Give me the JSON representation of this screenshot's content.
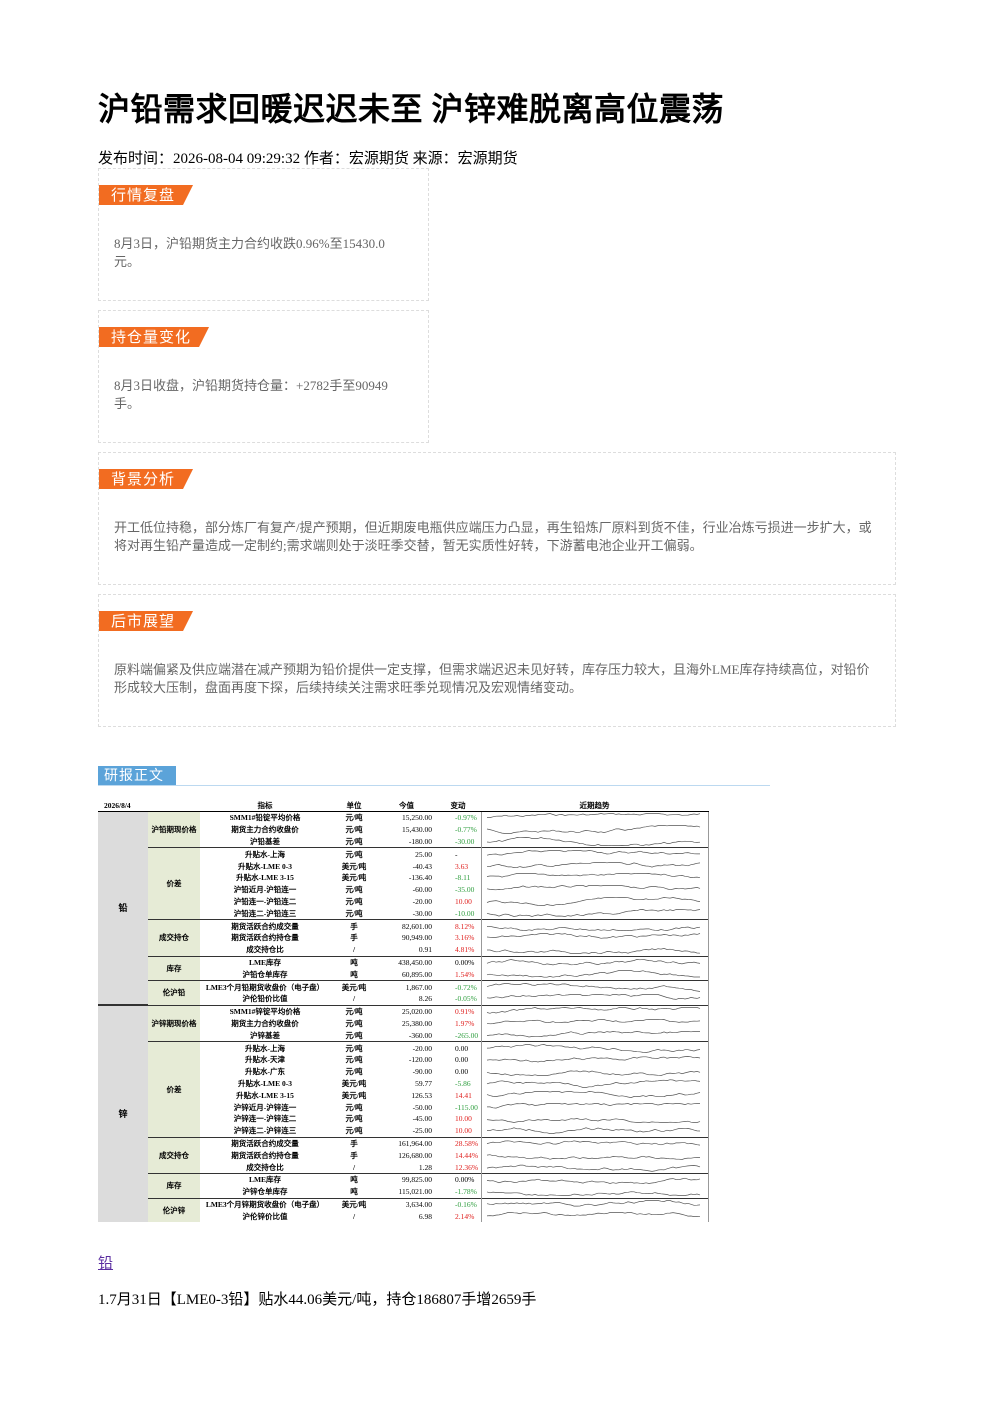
{
  "header": {
    "title": "沪铅需求回暖迟迟未至 沪锌难脱离高位震荡",
    "meta": "发布时间：2026-08-04 09:29:32 作者：宏源期货 来源：宏源期货"
  },
  "sections": [
    {
      "label": "行情复盘",
      "text": "8月3日，沪铅期货主力合约收跌0.96%至15430.0元。"
    },
    {
      "label": "持仓量变化",
      "text": "8月3日收盘，沪铅期货持仓量：+2782手至90949手。"
    },
    {
      "label": "背景分析",
      "text": "开工低位持稳，部分炼厂有复产/提产预期，但近期废电瓶供应端压力凸显，再生铅炼厂原料到货不佳，行业冶炼亏损进一步扩大，或将对再生铅产量造成一定制约;需求端则处于淡旺季交替，暂无实质性好转，下游蓄电池企业开工偏弱。"
    },
    {
      "label": "后市展望",
      "text": "原料端偏紧及供应端潜在减产预期为铅价提供一定支撑，但需求端迟迟未见好转，库存压力较大，且海外LME库存持续高位，对铅价形成较大压制，盘面再度下探，后续持续关注需求旺季兑现情况及宏观情绪变动。"
    }
  ],
  "report": {
    "label": "研报正文",
    "table": {
      "date": "2026/8/4",
      "columns": [
        "指标",
        "单位",
        "今值",
        "变动",
        "近期趋势"
      ],
      "groups": [
        {
          "metal": "铅",
          "subgroups": [
            {
              "name": "沪铅期现价格",
              "rows": [
                [
                  "SMM1#铅锭平均价格",
                  "元/吨",
                  "15,250.00",
                  "-0.97%"
                ],
                [
                  "期货主力合约收盘价",
                  "元/吨",
                  "15,430.00",
                  "-0.77%"
                ],
                [
                  "沪铅基差",
                  "元/吨",
                  "-180.00",
                  "-30.00"
                ]
              ]
            },
            {
              "name": "价差",
              "rows": [
                [
                  "升贴水-上海",
                  "元/吨",
                  "25.00",
                  "-"
                ],
                [
                  "升贴水-LME 0-3",
                  "美元/吨",
                  "-40.43",
                  "3.63"
                ],
                [
                  "升贴水-LME 3-15",
                  "美元/吨",
                  "-136.40",
                  "-8.11"
                ],
                [
                  "沪铅近月-沪铅连一",
                  "元/吨",
                  "-60.00",
                  "-35.00"
                ],
                [
                  "沪铅连一-沪铅连二",
                  "元/吨",
                  "-20.00",
                  "10.00"
                ],
                [
                  "沪铅连二-沪铅连三",
                  "元/吨",
                  "-30.00",
                  "-10.00"
                ]
              ]
            },
            {
              "name": "成交持仓",
              "rows": [
                [
                  "期货活跃合约成交量",
                  "手",
                  "82,601.00",
                  "8.12%"
                ],
                [
                  "期货活跃合约持仓量",
                  "手",
                  "90,949.00",
                  "3.16%"
                ],
                [
                  "成交持仓比",
                  "/",
                  "0.91",
                  "4.81%"
                ]
              ]
            },
            {
              "name": "库存",
              "rows": [
                [
                  "LME库存",
                  "吨",
                  "438,450.00",
                  "0.00%"
                ],
                [
                  "沪铅仓单库存",
                  "吨",
                  "60,895.00",
                  "1.54%"
                ]
              ]
            },
            {
              "name": "伦沪铅",
              "rows": [
                [
                  "LME3个月铅期货收盘价（电子盘）",
                  "美元/吨",
                  "1,867.00",
                  "-0.72%"
                ],
                [
                  "沪伦铅价比值",
                  "/",
                  "8.26",
                  "-0.05%"
                ]
              ]
            }
          ]
        },
        {
          "metal": "锌",
          "subgroups": [
            {
              "name": "沪锌期现价格",
              "rows": [
                [
                  "SMM1#锌锭平均价格",
                  "元/吨",
                  "25,020.00",
                  "0.91%"
                ],
                [
                  "期货主力合约收盘价",
                  "元/吨",
                  "25,380.00",
                  "1.97%"
                ],
                [
                  "沪锌基差",
                  "元/吨",
                  "-360.00",
                  "-265.00"
                ]
              ]
            },
            {
              "name": "价差",
              "rows": [
                [
                  "升贴水-上海",
                  "元/吨",
                  "-20.00",
                  "0.00"
                ],
                [
                  "升贴水-天津",
                  "元/吨",
                  "-120.00",
                  "0.00"
                ],
                [
                  "升贴水-广东",
                  "元/吨",
                  "-90.00",
                  "0.00"
                ],
                [
                  "升贴水-LME 0-3",
                  "美元/吨",
                  "59.77",
                  "-5.86"
                ],
                [
                  "升贴水-LME 3-15",
                  "美元/吨",
                  "126.53",
                  "14.41"
                ],
                [
                  "沪锌近月-沪锌连一",
                  "元/吨",
                  "-50.00",
                  "-115.00"
                ],
                [
                  "沪锌连一-沪锌连二",
                  "元/吨",
                  "-45.00",
                  "10.00"
                ],
                [
                  "沪锌连二-沪锌连三",
                  "元/吨",
                  "-25.00",
                  "10.00"
                ]
              ]
            },
            {
              "name": "成交持仓",
              "rows": [
                [
                  "期货活跃合约成交量",
                  "手",
                  "161,964.00",
                  "28.58%"
                ],
                [
                  "期货活跃合约持仓量",
                  "手",
                  "126,680.00",
                  "14.44%"
                ],
                [
                  "成交持仓比",
                  "/",
                  "1.28",
                  "12.36%"
                ]
              ]
            },
            {
              "name": "库存",
              "rows": [
                [
                  "LME库存",
                  "吨",
                  "99,825.00",
                  "0.00%"
                ],
                [
                  "沪锌仓单库存",
                  "吨",
                  "115,021.00",
                  "-1.78%"
                ]
              ]
            },
            {
              "name": "伦沪锌",
              "rows": [
                [
                  "LME3个月锌期货收盘价（电子盘）",
                  "美元/吨",
                  "3,634.00",
                  "-0.16%"
                ],
                [
                  "沪伦锌价比值",
                  "/",
                  "6.98",
                  "2.14%"
                ]
              ]
            }
          ]
        }
      ]
    }
  },
  "link": "铅",
  "paragraph": "1.7月31日【LME0-3铅】贴水44.06美元/吨，持仓186807手增2659手"
}
